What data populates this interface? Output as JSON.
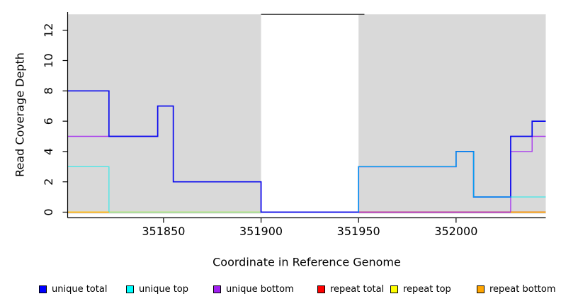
{
  "chart_data": {
    "type": "line",
    "subtype": "step-coverage",
    "title": "",
    "xlabel": "Coordinate in Reference Genome",
    "ylabel": "Read Coverage Depth",
    "xlim": [
      351801,
      352046
    ],
    "ylim": [
      0,
      13
    ],
    "x_ticks": [
      351850,
      351900,
      351950,
      352000
    ],
    "y_ticks": [
      0,
      2,
      4,
      6,
      8,
      10,
      12
    ],
    "grid": false,
    "background_color": "#ffffff",
    "shaded_region_color": "#D9D9D9",
    "shaded_regions": [
      {
        "from": 351801,
        "to": 351900
      },
      {
        "from": 351950,
        "to": 352046
      }
    ],
    "gap_top_line": {
      "from": 351900,
      "to": 351953,
      "value": 13.05,
      "color": "#3c3c3c"
    },
    "series": [
      {
        "name": "repeat top",
        "color": "#FFFF00",
        "opacity": 1,
        "width": 1.4,
        "segments": [
          {
            "points": [
              [
                351801,
                0
              ]
            ],
            "end": 352046
          }
        ]
      },
      {
        "name": "no-coverage baseline (green, not in legend)",
        "color": "#90DC90",
        "opacity": 1,
        "width": 1.4,
        "segments": [
          {
            "points": [
              [
                351822,
                0
              ]
            ],
            "end": 352046
          }
        ]
      },
      {
        "name": "repeat total",
        "color": "#EE0000",
        "opacity": 1,
        "width": 1.4,
        "segments": [
          {
            "points": [
              [
                351950,
                0
              ]
            ],
            "end": 352046
          }
        ]
      },
      {
        "name": "unique bottom",
        "color": "#A020F0",
        "opacity": 0.85,
        "width": 1.4,
        "segments": [
          {
            "points": [
              [
                351801,
                5
              ],
              [
                351847,
                7
              ],
              [
                351855,
                2
              ],
              [
                351900,
                0
              ],
              [
                352028,
                4
              ],
              [
                352039,
                5
              ]
            ],
            "end": 352046
          }
        ]
      },
      {
        "name": "unique total",
        "color": "#0A0AEE",
        "opacity": 1,
        "width": 1.7,
        "segments": [
          {
            "points": [
              [
                351801,
                8
              ],
              [
                351822,
                5
              ],
              [
                351847,
                7
              ],
              [
                351855,
                2
              ],
              [
                351900,
                0
              ],
              [
                351950,
                3
              ],
              [
                352000,
                4
              ],
              [
                352009,
                1
              ],
              [
                352028,
                5
              ],
              [
                352039,
                6
              ]
            ],
            "end": 352046
          }
        ]
      },
      {
        "name": "unique top",
        "color": "#00EEEE",
        "opacity": 0.65,
        "width": 1.4,
        "segments": [
          {
            "points": [
              [
                351801,
                3
              ],
              [
                351822,
                0
              ]
            ],
            "end": 351822
          },
          {
            "points": [
              [
                351950,
                0
              ],
              [
                351950,
                3
              ],
              [
                352000,
                4
              ],
              [
                352009,
                1
              ]
            ],
            "end": 352046
          }
        ]
      },
      {
        "name": "repeat bottom",
        "color": "#FFA500",
        "opacity": 1,
        "width": 1.6,
        "segments": [
          {
            "points": [
              [
                351801,
                0
              ]
            ],
            "end": 351822
          },
          {
            "points": [
              [
                352028,
                0
              ]
            ],
            "end": 352046
          }
        ]
      }
    ],
    "legend": [
      {
        "label": "unique total",
        "color": "#0000FF"
      },
      {
        "label": "unique top",
        "color": "#00FFFF"
      },
      {
        "label": "unique bottom",
        "color": "#A020F0"
      },
      {
        "label": "repeat total",
        "color": "#FF0000"
      },
      {
        "label": "repeat top",
        "color": "#FFFF00"
      },
      {
        "label": "repeat bottom",
        "color": "#FFA500"
      }
    ],
    "legend_position": "bottom"
  },
  "labels": {
    "x_axis_title": "Coordinate in Reference Genome",
    "y_axis_title": "Read Coverage Depth"
  }
}
